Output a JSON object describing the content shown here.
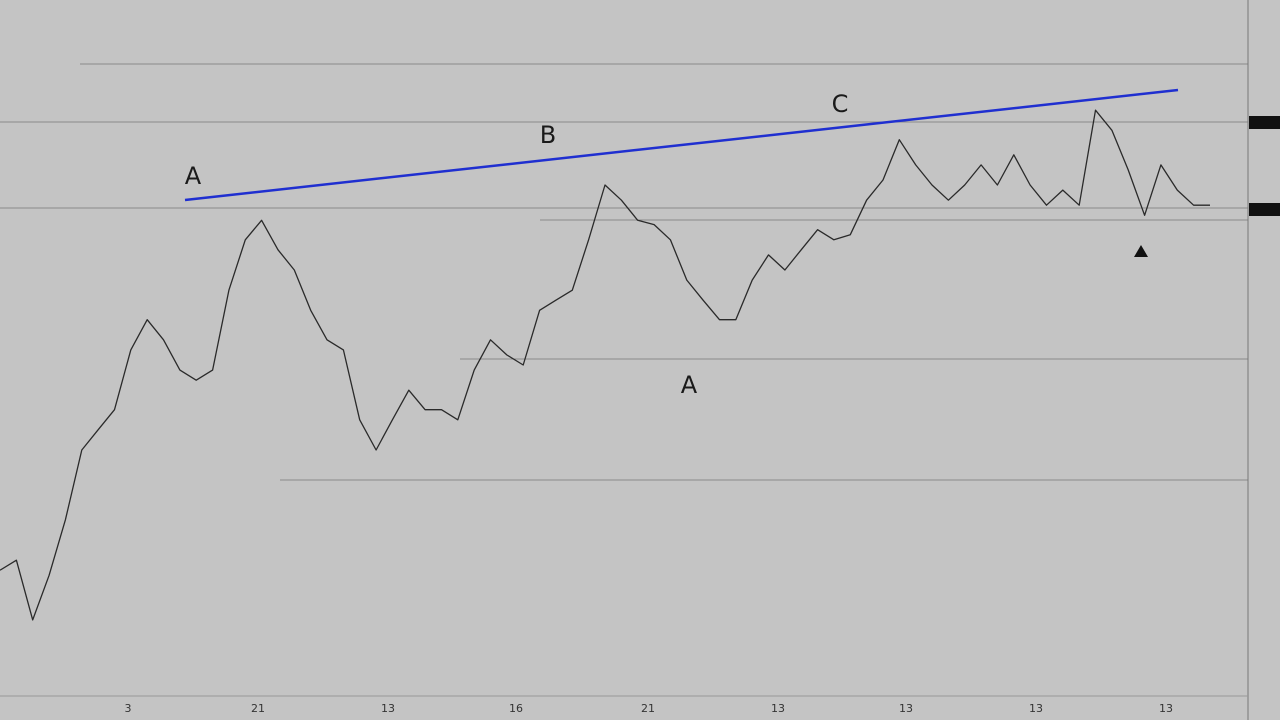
{
  "chart_data": {
    "type": "line",
    "values": [
      20.8,
      22.2,
      13.9,
      20.1,
      27.8,
      37.5,
      40.3,
      43.1,
      51.4,
      55.6,
      52.8,
      48.6,
      47.2,
      48.6,
      59.7,
      66.7,
      69.4,
      65.3,
      62.5,
      56.9,
      52.8,
      51.4,
      41.7,
      37.5,
      41.7,
      45.8,
      43.1,
      43.1,
      41.7,
      48.6,
      52.8,
      50.7,
      49.3,
      56.9,
      58.3,
      59.7,
      66.7,
      74.3,
      72.2,
      69.4,
      68.8,
      66.7,
      61.1,
      58.3,
      55.6,
      55.6,
      61.1,
      64.6,
      62.5,
      65.3,
      68.1,
      66.7,
      67.4,
      72.2,
      75,
      80.6,
      77.1,
      74.3,
      72.2,
      74.3,
      77.1,
      74.3,
      78.5,
      74.3,
      71.5,
      73.6,
      71.5,
      84.7,
      81.9,
      76.4,
      70.1,
      77.1,
      73.6,
      71.5,
      71.5
    ],
    "color": "#2a2a2a",
    "ylim": [
      0,
      100
    ],
    "x_tick_labels": [
      "3",
      "21",
      "13",
      "16",
      "21",
      "13",
      "13",
      "13",
      "13"
    ],
    "annotations": [
      {
        "text": "A"
      },
      {
        "text": "B"
      },
      {
        "text": "C"
      },
      {
        "text": "A"
      }
    ]
  }
}
